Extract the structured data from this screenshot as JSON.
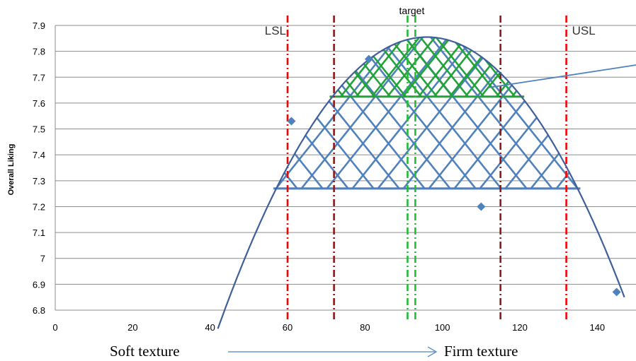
{
  "chart_data": {
    "type": "scatter",
    "title": "",
    "xlabel": "",
    "ylabel": "Overall Liking",
    "xlim": [
      0,
      150
    ],
    "ylim": [
      6.8,
      7.9
    ],
    "xticks": [
      "0",
      "20",
      "40",
      "60",
      "80",
      "100",
      "120",
      "140"
    ],
    "yticks": [
      "6.8",
      "6.9",
      "7",
      "7.1",
      "7.2",
      "7.3",
      "7.4",
      "7.5",
      "7.6",
      "7.7",
      "7.8",
      "7.9"
    ],
    "grid": true,
    "series": [
      {
        "values": [
          {
            "x": 61,
            "y": 7.53
          },
          {
            "x": 81,
            "y": 7.77
          },
          {
            "x": 110,
            "y": 7.2
          },
          {
            "x": 145,
            "y": 6.87
          }
        ],
        "color": "#4f81bd",
        "marker": "diamond"
      }
    ],
    "fit_curve": {
      "type": "quadratic",
      "x_range": [
        42,
        147
      ],
      "vertex": {
        "x": 96,
        "y": 7.855
      },
      "endpoint_y": 6.85,
      "color": "#3f5f9a"
    },
    "spec_lines": [
      {
        "label": "LSL",
        "x": 60,
        "color": "#ff0000"
      },
      {
        "label": "USL",
        "x": 132,
        "color": "#ff0000"
      },
      {
        "label": "",
        "x": 72,
        "color": "#8b1a1a"
      },
      {
        "label": "",
        "x": 115,
        "color": "#8b1a1a"
      },
      {
        "label": "target",
        "x": 91,
        "color": "#22bb33"
      },
      {
        "label": "",
        "x": 93,
        "color": "#22bb33"
      }
    ],
    "hatched_regions": [
      {
        "y_low": 7.27,
        "y_high": 7.855,
        "color": "#4f81bd"
      },
      {
        "y_low": 7.625,
        "y_high": 7.855,
        "color": "#22a33a"
      }
    ],
    "callout_line": {
      "from": {
        "x": 112,
        "y": 7.66
      },
      "color": "#4f81bd"
    }
  },
  "footer": {
    "left_label": "Soft texture",
    "right_label": "Firm texture",
    "arrow_color": "#4f81bd"
  }
}
